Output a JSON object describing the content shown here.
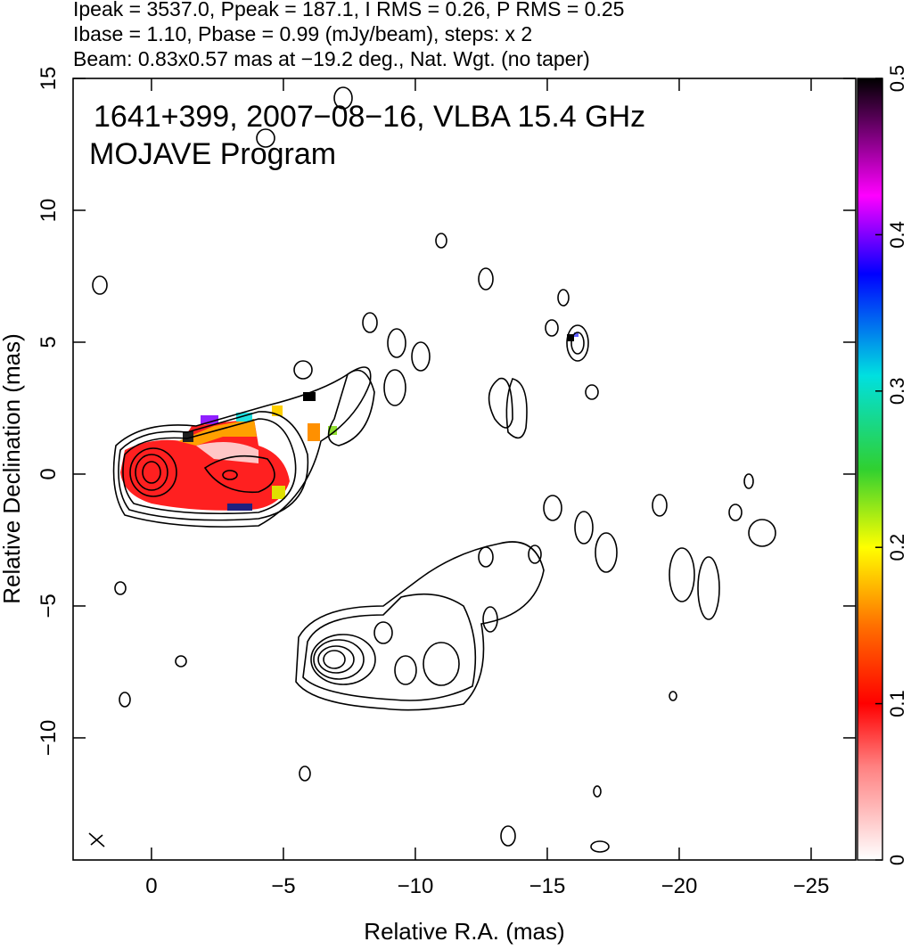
{
  "chart_data": {
    "type": "contour-map",
    "header_lines": [
      "Ipeak = 3537.0, Ppeak = 187.1, I RMS = 0.26, P RMS = 0.25",
      "Ibase = 1.10, Pbase = 0.99 (mJy/beam), steps: x 2",
      "Beam: 0.83x0.57 mas at −19.2 deg., Nat. Wgt. (no taper)"
    ],
    "annotations": [
      "1641+399, 2007−08−16, VLBA 15.4 GHz",
      "MOJAVE Program"
    ],
    "xlabel": "Relative R.A. (mas)",
    "ylabel": "Relative Declination (mas)",
    "xlim": [
      2.97,
      -26.69
    ],
    "ylim": [
      -14.63,
      15
    ],
    "xticks": [
      0,
      {
        "value": -5,
        "label": "−5"
      },
      {
        "value": -10,
        "label": "−10"
      },
      {
        "value": -15,
        "label": "−15"
      },
      {
        "value": -20,
        "label": "−20"
      },
      {
        "value": -25,
        "label": "−25"
      }
    ],
    "yticks": [
      {
        "value": -10,
        "label": "−10"
      },
      {
        "value": -5,
        "label": "−5"
      },
      0,
      5,
      10,
      15
    ],
    "colorbar": {
      "lim": [
        0,
        0.5
      ],
      "ticks": [
        0,
        0.1,
        0.2,
        0.3,
        0.4,
        0.5
      ]
    }
  }
}
